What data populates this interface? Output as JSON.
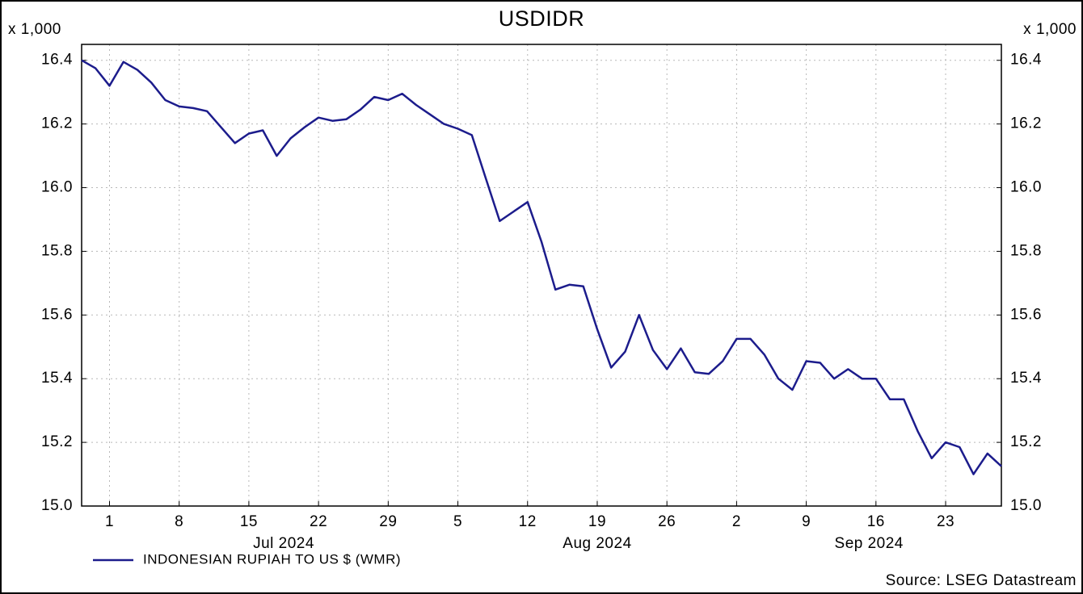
{
  "chart_data": {
    "type": "line",
    "title": "USDIDR",
    "axis_multiplier": "x 1,000",
    "source": "Source: LSEG Datastream",
    "months": [
      "Jul 2024",
      "Aug 2024",
      "Sep 2024"
    ],
    "categories": [
      null,
      null,
      "1",
      null,
      null,
      null,
      null,
      "8",
      null,
      null,
      null,
      null,
      "15",
      null,
      null,
      null,
      null,
      "22",
      null,
      null,
      null,
      null,
      "29",
      null,
      null,
      null,
      null,
      "5",
      null,
      null,
      null,
      null,
      "12",
      null,
      null,
      null,
      null,
      "19",
      null,
      null,
      null,
      null,
      "26",
      null,
      null,
      null,
      null,
      "2",
      null,
      null,
      null,
      null,
      "9",
      null,
      null,
      null,
      null,
      "16",
      null,
      null,
      null,
      null,
      "23",
      null,
      null,
      null,
      null
    ],
    "series": [
      {
        "name": "INDONESIAN RUPIAH TO US $ (WMR)",
        "color": "#1c1c8c",
        "values": [
          16.4,
          16.375,
          16.32,
          16.395,
          16.37,
          16.33,
          16.275,
          16.255,
          16.25,
          16.24,
          16.19,
          16.14,
          16.17,
          16.18,
          16.1,
          16.155,
          16.19,
          16.22,
          16.21,
          16.215,
          16.245,
          16.285,
          16.275,
          16.295,
          16.26,
          16.23,
          16.2,
          16.185,
          16.165,
          16.03,
          15.895,
          15.925,
          15.955,
          15.83,
          15.68,
          15.695,
          15.69,
          15.555,
          15.435,
          15.485,
          15.6,
          15.49,
          15.43,
          15.495,
          15.42,
          15.415,
          15.455,
          15.525,
          15.525,
          15.475,
          15.4,
          15.365,
          15.455,
          15.45,
          15.4,
          15.43,
          15.4,
          15.4,
          15.335,
          15.335,
          15.235,
          15.15,
          15.2,
          15.185,
          15.1,
          15.165,
          15.125
        ]
      }
    ],
    "ylim": [
      15.0,
      16.45
    ],
    "yticks": [
      {
        "value": 15,
        "label": "15.0"
      },
      15.2,
      15.4,
      15.6,
      15.8,
      {
        "value": 16,
        "label": "16.0"
      },
      16.2,
      16.4
    ],
    "grid": true
  }
}
